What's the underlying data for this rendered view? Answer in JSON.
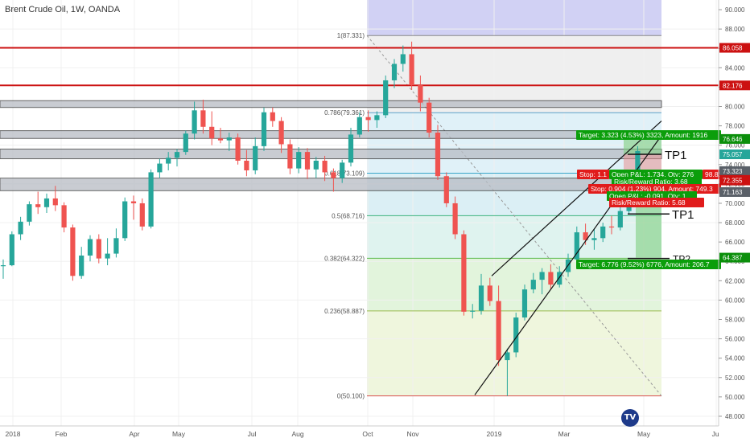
{
  "header": {
    "title": "Brent Crude Oil, 1W, OANDA"
  },
  "brand": {
    "logo": "tradingview-logo"
  },
  "colors": {
    "up": "#26a69a",
    "down": "#ef5350",
    "resistance": "#cc1111",
    "price_zone": "#b7bcc4",
    "projection_band": "#c9c9f2"
  },
  "chart_data": {
    "type": "candlestick",
    "instrument": "Brent Crude Oil, 1W, OANDA",
    "y_axis": {
      "min": 47,
      "max": 91,
      "ticks": [
        48,
        50,
        52,
        54,
        56,
        58,
        60,
        62,
        64,
        66,
        68,
        70,
        72,
        74,
        76,
        78,
        80,
        82,
        84,
        86,
        88,
        90
      ]
    },
    "x_axis": {
      "labels": [
        "2018",
        "Feb",
        "Apr",
        "May",
        "Jul",
        "Aug",
        "Oct",
        "Nov",
        "2019",
        "Mar",
        "May",
        "Jul"
      ]
    },
    "candles": [
      {
        "o": 63.5,
        "h": 64.2,
        "l": 62.2,
        "c": 63.6
      },
      {
        "o": 63.6,
        "h": 67.1,
        "l": 63.5,
        "c": 66.8
      },
      {
        "o": 66.8,
        "h": 68.6,
        "l": 66.2,
        "c": 68.1
      },
      {
        "o": 68.1,
        "h": 70.2,
        "l": 67.7,
        "c": 69.9
      },
      {
        "o": 69.9,
        "h": 71.2,
        "l": 68.9,
        "c": 69.6
      },
      {
        "o": 69.6,
        "h": 71.0,
        "l": 69.0,
        "c": 70.5
      },
      {
        "o": 70.5,
        "h": 71.8,
        "l": 69.2,
        "c": 69.8
      },
      {
        "o": 69.8,
        "h": 70.1,
        "l": 67.0,
        "c": 67.5
      },
      {
        "o": 67.5,
        "h": 67.8,
        "l": 62.0,
        "c": 62.5
      },
      {
        "o": 62.5,
        "h": 65.5,
        "l": 62.2,
        "c": 64.6
      },
      {
        "o": 64.6,
        "h": 66.7,
        "l": 64.0,
        "c": 66.3
      },
      {
        "o": 66.3,
        "h": 66.8,
        "l": 63.8,
        "c": 64.3
      },
      {
        "o": 64.3,
        "h": 66.4,
        "l": 63.6,
        "c": 64.8
      },
      {
        "o": 64.8,
        "h": 67.4,
        "l": 64.4,
        "c": 66.4
      },
      {
        "o": 66.4,
        "h": 70.6,
        "l": 66.1,
        "c": 70.2
      },
      {
        "o": 70.2,
        "h": 70.8,
        "l": 68.3,
        "c": 70.0
      },
      {
        "o": 70.0,
        "h": 70.5,
        "l": 67.2,
        "c": 67.6
      },
      {
        "o": 67.6,
        "h": 73.5,
        "l": 67.4,
        "c": 73.2
      },
      {
        "o": 73.2,
        "h": 74.6,
        "l": 72.6,
        "c": 74.1
      },
      {
        "o": 74.1,
        "h": 75.3,
        "l": 73.4,
        "c": 74.7
      },
      {
        "o": 74.7,
        "h": 75.6,
        "l": 73.8,
        "c": 75.3
      },
      {
        "o": 75.3,
        "h": 77.5,
        "l": 75.0,
        "c": 77.2
      },
      {
        "o": 77.2,
        "h": 80.5,
        "l": 76.6,
        "c": 79.6
      },
      {
        "o": 79.6,
        "h": 80.7,
        "l": 77.2,
        "c": 77.9
      },
      {
        "o": 77.9,
        "h": 79.5,
        "l": 76.0,
        "c": 76.7
      },
      {
        "o": 76.7,
        "h": 77.8,
        "l": 76.2,
        "c": 76.5
      },
      {
        "o": 76.5,
        "h": 77.3,
        "l": 75.4,
        "c": 76.8
      },
      {
        "o": 76.8,
        "h": 77.2,
        "l": 74.0,
        "c": 74.4
      },
      {
        "o": 74.4,
        "h": 75.5,
        "l": 72.8,
        "c": 73.4
      },
      {
        "o": 73.4,
        "h": 76.8,
        "l": 73.0,
        "c": 75.9
      },
      {
        "o": 75.9,
        "h": 79.9,
        "l": 75.4,
        "c": 79.4
      },
      {
        "o": 79.4,
        "h": 79.9,
        "l": 77.9,
        "c": 78.5
      },
      {
        "o": 78.5,
        "h": 78.9,
        "l": 75.2,
        "c": 76.1
      },
      {
        "o": 76.1,
        "h": 76.6,
        "l": 73.0,
        "c": 73.6
      },
      {
        "o": 73.6,
        "h": 75.8,
        "l": 73.1,
        "c": 75.3
      },
      {
        "o": 75.3,
        "h": 75.7,
        "l": 72.5,
        "c": 73.5
      },
      {
        "o": 73.5,
        "h": 74.8,
        "l": 72.6,
        "c": 74.4
      },
      {
        "o": 74.4,
        "h": 74.9,
        "l": 72.3,
        "c": 73.2
      },
      {
        "o": 73.2,
        "h": 73.6,
        "l": 71.2,
        "c": 72.6
      },
      {
        "o": 72.6,
        "h": 74.5,
        "l": 72.1,
        "c": 74.2
      },
      {
        "o": 74.2,
        "h": 77.8,
        "l": 73.8,
        "c": 77.1
      },
      {
        "o": 77.1,
        "h": 79.4,
        "l": 76.8,
        "c": 78.9
      },
      {
        "o": 78.9,
        "h": 79.6,
        "l": 77.4,
        "c": 78.6
      },
      {
        "o": 78.6,
        "h": 79.5,
        "l": 77.8,
        "c": 79.1
      },
      {
        "o": 79.1,
        "h": 83.2,
        "l": 78.8,
        "c": 82.7
      },
      {
        "o": 82.7,
        "h": 84.9,
        "l": 81.9,
        "c": 84.4
      },
      {
        "o": 84.4,
        "h": 86.3,
        "l": 83.6,
        "c": 85.4
      },
      {
        "o": 85.4,
        "h": 86.7,
        "l": 81.7,
        "c": 82.2
      },
      {
        "o": 82.2,
        "h": 83.2,
        "l": 79.5,
        "c": 80.4
      },
      {
        "o": 80.4,
        "h": 80.9,
        "l": 76.8,
        "c": 77.3
      },
      {
        "o": 77.3,
        "h": 78.1,
        "l": 72.4,
        "c": 72.8
      },
      {
        "o": 72.8,
        "h": 73.2,
        "l": 69.6,
        "c": 70.0
      },
      {
        "o": 70.0,
        "h": 70.7,
        "l": 66.3,
        "c": 66.8
      },
      {
        "o": 66.8,
        "h": 67.2,
        "l": 58.4,
        "c": 58.8
      },
      {
        "o": 58.8,
        "h": 59.6,
        "l": 58.1,
        "c": 58.9
      },
      {
        "o": 58.9,
        "h": 62.7,
        "l": 58.5,
        "c": 61.5
      },
      {
        "o": 61.5,
        "h": 62.3,
        "l": 59.4,
        "c": 59.9
      },
      {
        "o": 59.9,
        "h": 61.5,
        "l": 53.2,
        "c": 53.8
      },
      {
        "o": 53.8,
        "h": 55.0,
        "l": 50.1,
        "c": 54.6
      },
      {
        "o": 54.6,
        "h": 58.7,
        "l": 54.1,
        "c": 58.2
      },
      {
        "o": 58.2,
        "h": 61.6,
        "l": 57.9,
        "c": 61.1
      },
      {
        "o": 61.1,
        "h": 62.8,
        "l": 60.7,
        "c": 62.1
      },
      {
        "o": 62.1,
        "h": 63.3,
        "l": 60.6,
        "c": 62.9
      },
      {
        "o": 62.9,
        "h": 63.7,
        "l": 61.1,
        "c": 61.6
      },
      {
        "o": 61.6,
        "h": 63.5,
        "l": 61.3,
        "c": 62.9
      },
      {
        "o": 62.9,
        "h": 64.8,
        "l": 62.4,
        "c": 64.2
      },
      {
        "o": 64.2,
        "h": 67.6,
        "l": 63.8,
        "c": 67.0
      },
      {
        "o": 67.0,
        "h": 67.9,
        "l": 65.7,
        "c": 66.2
      },
      {
        "o": 66.2,
        "h": 67.4,
        "l": 65.2,
        "c": 66.4
      },
      {
        "o": 66.4,
        "h": 68.0,
        "l": 66.0,
        "c": 67.6
      },
      {
        "o": 67.6,
        "h": 68.7,
        "l": 66.8,
        "c": 67.5
      },
      {
        "o": 67.5,
        "h": 69.8,
        "l": 67.2,
        "c": 69.2
      },
      {
        "o": 69.2,
        "h": 72.0,
        "l": 68.9,
        "c": 71.6
      },
      {
        "o": 71.6,
        "h": 75.9,
        "l": 71.3,
        "c": 75.4
      }
    ],
    "horizontal_lines": [
      {
        "value": 86.058,
        "label": "86.058"
      },
      {
        "value": 82.176,
        "label": "82.176"
      }
    ],
    "zones": [
      {
        "low": 79.9,
        "high": 80.6
      },
      {
        "low": 76.7,
        "high": 77.5
      },
      {
        "low": 74.6,
        "high": 75.6
      },
      {
        "low": 71.3,
        "high": 72.6
      }
    ],
    "fib_levels": [
      {
        "ratio": "1",
        "value": 87.331,
        "label": "1(87.331)"
      },
      {
        "ratio": "0.786",
        "value": 79.361,
        "label": "0.786(79.361)"
      },
      {
        "ratio": "0.618",
        "value": 73.109,
        "label": "0.618(73.109)"
      },
      {
        "ratio": "0.5",
        "value": 68.716,
        "label": "0.5(68.716)"
      },
      {
        "ratio": "0.382",
        "value": 64.322,
        "label": "0.382(64.322)"
      },
      {
        "ratio": "0.236",
        "value": 58.887,
        "label": "0.236(58.887)"
      },
      {
        "ratio": "0",
        "value": 50.1,
        "label": "0(50.100)"
      }
    ],
    "axis_price_labels": [
      {
        "value": 86.058,
        "text": "86.058",
        "color": "#cc1111"
      },
      {
        "value": 82.176,
        "text": "82.176",
        "color": "#cc1111"
      },
      {
        "value": 76.646,
        "text": "76.646",
        "color": "#0b8f0b"
      },
      {
        "value": 75.057,
        "text": "75.057",
        "color": "#26a69a"
      },
      {
        "value": 73.323,
        "text": "73.323",
        "color": "#5a6068"
      },
      {
        "value": 72.419,
        "text": "72.419",
        "color": "#cc1111"
      },
      {
        "value": 72.355,
        "text": "72.355",
        "color": "#cc1111"
      },
      {
        "value": 71.163,
        "text": "71.163",
        "color": "#5a6068"
      },
      {
        "value": 64.387,
        "text": "64.387",
        "color": "#0b8f0b"
      }
    ],
    "position_labels": [
      {
        "text": "Target: 3.323 (4.53%) 3323, Amount: 1916",
        "kind": "target"
      },
      {
        "text": "Open P&L: 1.734, Qty: 276",
        "kind": "pnl"
      },
      {
        "text": "Risk/Reward Ratio: 3.68",
        "kind": "ratio"
      },
      {
        "text": "Stop: 1.1",
        "kind": "stop"
      },
      {
        "text": "98.81",
        "kind": "stop"
      },
      {
        "text": "Stop: 0.904 (1.23%) 904, Amount: 749.3",
        "kind": "stop"
      },
      {
        "text": "Open P&L: -0.091, Qty: 1",
        "kind": "pnl"
      },
      {
        "text": "Risk/Reward Ratio: 5.68",
        "kind": "stop"
      },
      {
        "text": "Target: 6.776 (9.52%) 6776, Amount: 206.7",
        "kind": "target"
      }
    ],
    "annotations": [
      "TP1",
      "TP1",
      "TP2"
    ]
  }
}
